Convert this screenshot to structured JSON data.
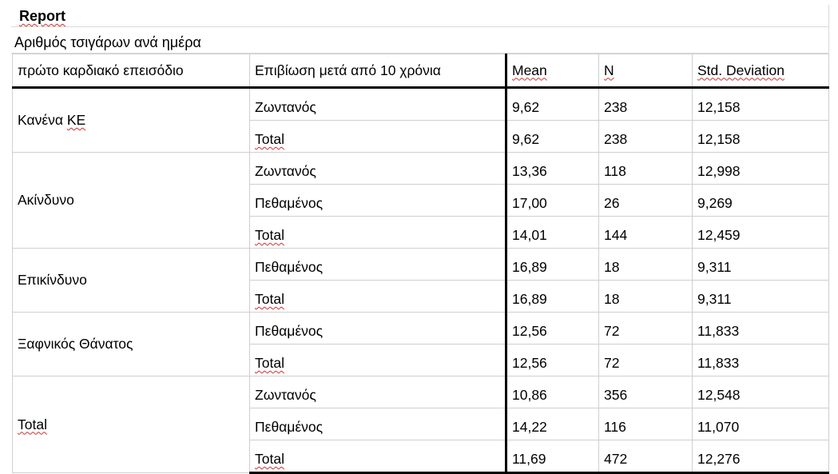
{
  "report": {
    "title": "Report",
    "subtitle": "Αριθμός τσιγάρων ανά ημέρα"
  },
  "table": {
    "headers": [
      "πρώτο καρδιακό επεισόδιο",
      "Επιβίωση μετά από 10 χρόνια",
      "Mean",
      "N",
      "Std. Deviation"
    ],
    "groups": [
      {
        "category": "Κανένα ΚΕ",
        "rows": [
          {
            "status": "Ζωντανός",
            "mean": "9,62",
            "n": "238",
            "sd": "12,158"
          },
          {
            "status": "Total",
            "mean": "9,62",
            "n": "238",
            "sd": "12,158"
          }
        ]
      },
      {
        "category": "Ακίνδυνο",
        "rows": [
          {
            "status": "Ζωντανός",
            "mean": "13,36",
            "n": "118",
            "sd": "12,998"
          },
          {
            "status": "Πεθαμένος",
            "mean": "17,00",
            "n": "26",
            "sd": "9,269"
          },
          {
            "status": "Total",
            "mean": "14,01",
            "n": "144",
            "sd": "12,459"
          }
        ]
      },
      {
        "category": "Επικίνδυνο",
        "rows": [
          {
            "status": "Πεθαμένος",
            "mean": "16,89",
            "n": "18",
            "sd": "9,311"
          },
          {
            "status": "Total",
            "mean": "16,89",
            "n": "18",
            "sd": "9,311"
          }
        ]
      },
      {
        "category": "Ξαφνικός Θάνατος",
        "rows": [
          {
            "status": "Πεθαμένος",
            "mean": "12,56",
            "n": "72",
            "sd": "11,833"
          },
          {
            "status": "Total",
            "mean": "12,56",
            "n": "72",
            "sd": "11,833"
          }
        ]
      },
      {
        "category": "Total",
        "rows": [
          {
            "status": "Ζωντανός",
            "mean": "10,86",
            "n": "356",
            "sd": "12,548"
          },
          {
            "status": "Πεθαμένος",
            "mean": "14,22",
            "n": "116",
            "sd": "11,070"
          },
          {
            "status": "Total",
            "mean": "11,69",
            "n": "472",
            "sd": "12,276"
          }
        ]
      }
    ]
  }
}
